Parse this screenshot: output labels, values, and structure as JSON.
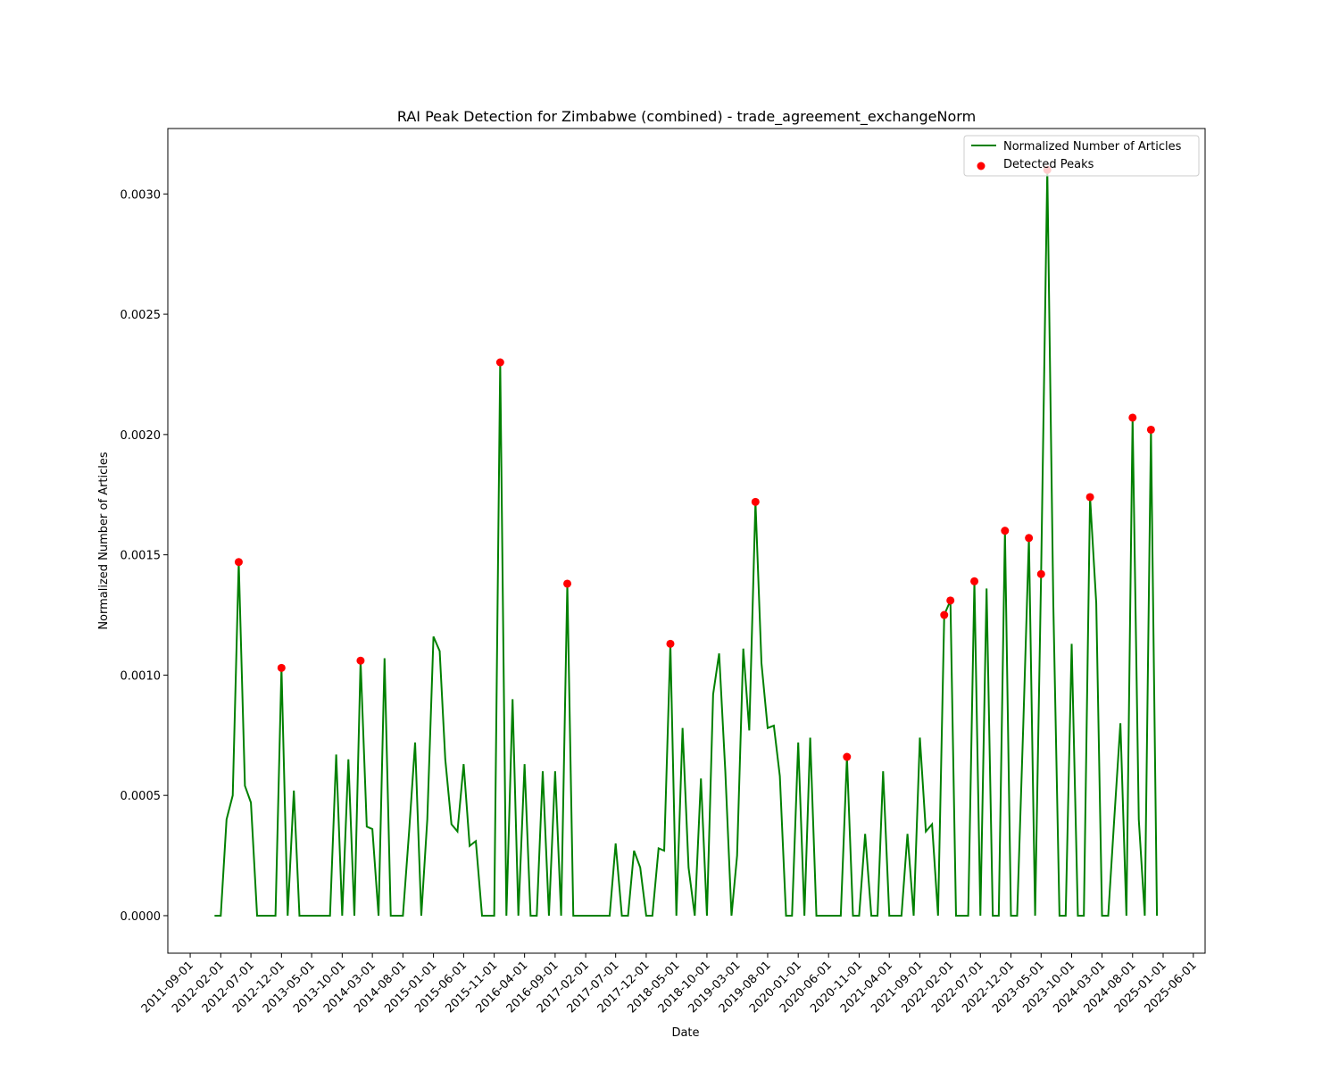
{
  "chart_data": {
    "type": "line",
    "title": "RAI Peak Detection for Zimbabwe (combined) - trade_agreement_exchangeNorm",
    "xlabel": "Date",
    "ylabel": "Normalized Number of Articles",
    "x": [
      "2012-01-01",
      "2012-02-01",
      "2012-03-01",
      "2012-04-01",
      "2012-05-01",
      "2012-06-01",
      "2012-07-01",
      "2012-08-01",
      "2012-09-01",
      "2012-10-01",
      "2012-11-01",
      "2012-12-01",
      "2013-01-01",
      "2013-02-01",
      "2013-03-01",
      "2013-04-01",
      "2013-05-01",
      "2013-06-01",
      "2013-07-01",
      "2013-08-01",
      "2013-09-01",
      "2013-10-01",
      "2013-11-01",
      "2013-12-01",
      "2014-01-01",
      "2014-02-01",
      "2014-03-01",
      "2014-04-01",
      "2014-05-01",
      "2014-06-01",
      "2014-07-01",
      "2014-08-01",
      "2014-09-01",
      "2014-10-01",
      "2014-11-01",
      "2014-12-01",
      "2015-01-01",
      "2015-02-01",
      "2015-03-01",
      "2015-04-01",
      "2015-05-01",
      "2015-06-01",
      "2015-07-01",
      "2015-08-01",
      "2015-09-01",
      "2015-10-01",
      "2015-11-01",
      "2015-12-01",
      "2016-01-01",
      "2016-02-01",
      "2016-03-01",
      "2016-04-01",
      "2016-05-01",
      "2016-06-01",
      "2016-07-01",
      "2016-08-01",
      "2016-09-01",
      "2016-10-01",
      "2016-11-01",
      "2016-12-01",
      "2017-01-01",
      "2017-02-01",
      "2017-03-01",
      "2017-04-01",
      "2017-05-01",
      "2017-06-01",
      "2017-07-01",
      "2017-08-01",
      "2017-09-01",
      "2017-10-01",
      "2017-11-01",
      "2017-12-01",
      "2018-01-01",
      "2018-02-01",
      "2018-03-01",
      "2018-04-01",
      "2018-05-01",
      "2018-06-01",
      "2018-07-01",
      "2018-08-01",
      "2018-09-01",
      "2018-10-01",
      "2018-11-01",
      "2018-12-01",
      "2019-01-01",
      "2019-02-01",
      "2019-03-01",
      "2019-04-01",
      "2019-05-01",
      "2019-06-01",
      "2019-07-01",
      "2019-08-01",
      "2019-09-01",
      "2019-10-01",
      "2019-11-01",
      "2019-12-01",
      "2020-01-01",
      "2020-02-01",
      "2020-03-01",
      "2020-04-01",
      "2020-05-01",
      "2020-06-01",
      "2020-07-01",
      "2020-08-01",
      "2020-09-01",
      "2020-10-01",
      "2020-11-01",
      "2020-12-01",
      "2021-01-01",
      "2021-02-01",
      "2021-03-01",
      "2021-04-01",
      "2021-05-01",
      "2021-06-01",
      "2021-07-01",
      "2021-08-01",
      "2021-09-01",
      "2021-10-01",
      "2021-11-01",
      "2021-12-01",
      "2022-01-01",
      "2022-02-01",
      "2022-03-01",
      "2022-04-01",
      "2022-05-01",
      "2022-06-01",
      "2022-07-01",
      "2022-08-01",
      "2022-09-01",
      "2022-10-01",
      "2022-11-01",
      "2022-12-01",
      "2023-01-01",
      "2023-02-01",
      "2023-03-01",
      "2023-04-01",
      "2023-05-01",
      "2023-06-01",
      "2023-07-01",
      "2023-08-01",
      "2023-09-01",
      "2023-10-01",
      "2023-11-01",
      "2023-12-01",
      "2024-01-01",
      "2024-02-01",
      "2024-03-01",
      "2024-04-01",
      "2024-05-01",
      "2024-06-01",
      "2024-07-01",
      "2024-08-01",
      "2024-09-01",
      "2024-10-01",
      "2024-11-01",
      "2024-12-01"
    ],
    "series": [
      {
        "name": "Normalized Number of Articles",
        "color": "#008000",
        "values": [
          0,
          0,
          0.0004,
          0.0005,
          0.00147,
          0.00054,
          0.00047,
          0,
          0,
          0,
          0,
          0.00103,
          0,
          0.00052,
          0,
          0,
          0,
          0,
          0,
          0,
          0.00067,
          0,
          0.00065,
          0,
          0.00106,
          0.00037,
          0.00036,
          0,
          0.00107,
          0,
          0,
          0,
          0.00035,
          0.00072,
          0,
          0.0004,
          0.00116,
          0.0011,
          0.00065,
          0.00038,
          0.00035,
          0.00063,
          0.00029,
          0.00031,
          0,
          0,
          0,
          0.0023,
          0,
          0.0009,
          0,
          0.00063,
          0,
          0,
          0.0006,
          0,
          0.0006,
          0,
          0.00138,
          0,
          0,
          0,
          0,
          0,
          0,
          0,
          0.0003,
          0,
          0,
          0.00027,
          0.0002,
          0,
          0,
          0.00028,
          0.00027,
          0.00113,
          0,
          0.00078,
          0.0002,
          0,
          0.00057,
          0,
          0.00092,
          0.00109,
          0.0006,
          0,
          0.00025,
          0.00111,
          0.00077,
          0.00172,
          0.00105,
          0.00078,
          0.00079,
          0.00058,
          0,
          0,
          0.00072,
          0,
          0.00074,
          0,
          0,
          0,
          0,
          0,
          0.00066,
          0,
          0,
          0.00034,
          0,
          0,
          0.0006,
          0,
          0,
          0,
          0.00034,
          0,
          0.00074,
          0.00035,
          0.00038,
          0,
          0.00125,
          0.00131,
          0,
          0,
          0,
          0.00139,
          0,
          0.00136,
          0,
          0,
          0.0016,
          0,
          0,
          0.0008,
          0.00157,
          0,
          0.00142,
          0.0031,
          0.0013,
          0,
          0,
          0.00113,
          0,
          0,
          0.00174,
          0.0013,
          0,
          0,
          0.0004,
          0.0008,
          0,
          0.00207,
          0.0004,
          0,
          0.00202,
          0
        ]
      },
      {
        "name": "Detected Peaks",
        "type": "scatter",
        "color": "#ff0000",
        "x": [
          "2012-05-01",
          "2012-12-01",
          "2014-01-01",
          "2015-12-01",
          "2016-11-01",
          "2018-04-01",
          "2019-06-01",
          "2020-09-01",
          "2022-01-01",
          "2022-02-01",
          "2022-06-01",
          "2022-11-01",
          "2023-03-01",
          "2023-05-01",
          "2023-06-01",
          "2024-01-01",
          "2024-08-01",
          "2024-11-01"
        ],
        "values": [
          0.00147,
          0.00103,
          0.00106,
          0.0023,
          0.00138,
          0.00113,
          0.00172,
          0.00066,
          0.00125,
          0.00131,
          0.00139,
          0.0016,
          0.00157,
          0.00142,
          0.0031,
          0.00174,
          0.00207,
          0.00202
        ]
      }
    ],
    "xlim": [
      "2011-05-12",
      "2025-07-30"
    ],
    "xticks": [
      "2011-09-01",
      "2012-02-01",
      "2012-07-01",
      "2012-12-01",
      "2013-05-01",
      "2013-10-01",
      "2014-03-01",
      "2014-08-01",
      "2015-01-01",
      "2015-06-01",
      "2015-11-01",
      "2016-04-01",
      "2016-09-01",
      "2017-02-01",
      "2017-07-01",
      "2017-12-01",
      "2018-05-01",
      "2018-10-01",
      "2019-03-01",
      "2019-08-01",
      "2020-01-01",
      "2020-06-01",
      "2020-11-01",
      "2021-04-01",
      "2021-09-01",
      "2022-02-01",
      "2022-07-01",
      "2022-12-01",
      "2023-05-01",
      "2023-10-01",
      "2024-03-01",
      "2024-08-01",
      "2025-01-01",
      "2025-06-01"
    ],
    "ylim": [
      -0.000156,
      0.003272
    ],
    "yticks": [
      {
        "value": 0,
        "label": "0.0000"
      },
      {
        "value": 0.0005,
        "label": "0.0005"
      },
      {
        "value": 0.001,
        "label": "0.0010"
      },
      {
        "value": 0.0015,
        "label": "0.0015"
      },
      {
        "value": 0.002,
        "label": "0.0020"
      },
      {
        "value": 0.0025,
        "label": "0.0025"
      },
      {
        "value": 0.003,
        "label": "0.0030"
      }
    ],
    "legend": "upper right"
  }
}
